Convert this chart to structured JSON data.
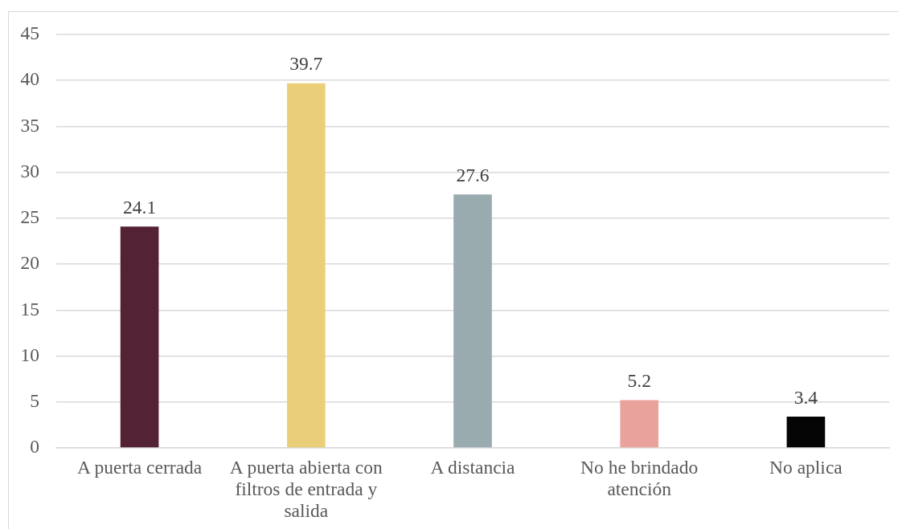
{
  "chart_data": {
    "type": "bar",
    "categories": [
      "A puerta cerrada",
      "A puerta abierta con filtros de entrada y salida",
      "A distancia",
      "No he brindado atención",
      "No aplica"
    ],
    "values": [
      24.1,
      39.7,
      27.6,
      5.2,
      3.4
    ],
    "colors": [
      "#532234",
      "#ebcf78",
      "#9aabb0",
      "#e9a29c",
      "#050505"
    ],
    "ylim": [
      0,
      45
    ],
    "yticks": [
      0,
      5,
      10,
      15,
      20,
      25,
      30,
      35,
      40,
      45
    ],
    "grid": "y",
    "data_labels": true
  }
}
